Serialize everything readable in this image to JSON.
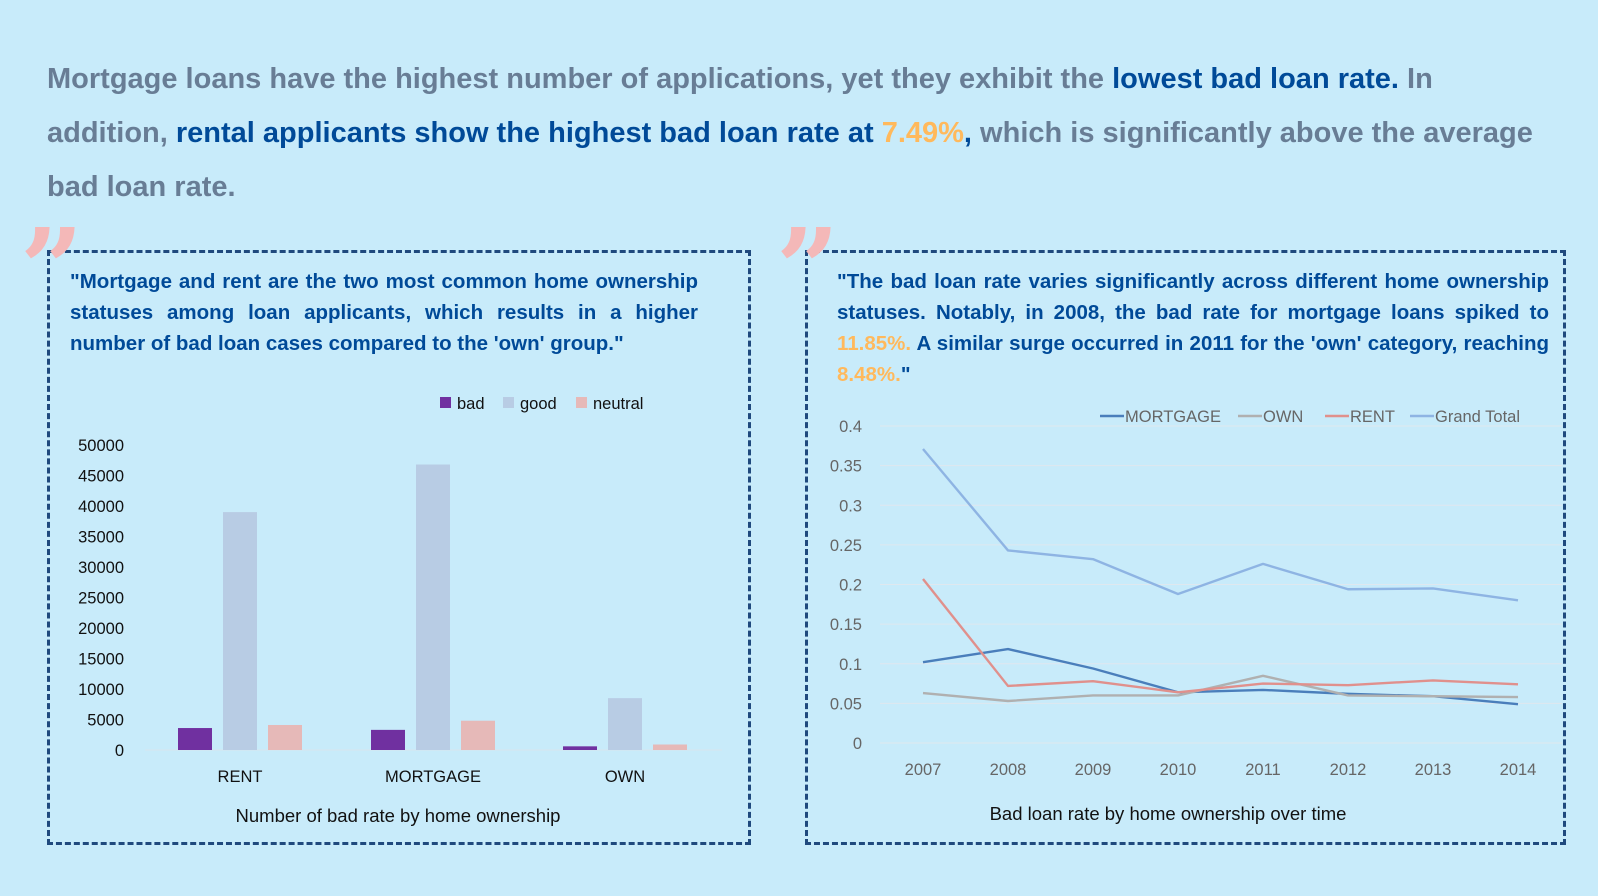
{
  "headline": {
    "p1": "Mortgage loans have the highest number of applications, yet they exhibit the ",
    "p2": "lowest bad loan rate.",
    "p3": " In addition, ",
    "p4": "rental applicants show the highest bad loan rate at ",
    "p5": "7.49%",
    "p6": ",",
    "p7": " which is significantly above the average bad loan rate."
  },
  "left_panel": {
    "quote_icon": "quote-mark-icon",
    "text": "\"Mortgage and rent are the two most common home ownership statuses among loan applicants, which results in a higher number of bad loan cases compared to the 'own' group.\""
  },
  "right_panel": {
    "quote_icon": "quote-mark-icon",
    "t1": "\"The bad loan rate varies significantly across different home ownership statuses. Notably, in 2008, the bad rate for mortgage loans spiked to ",
    "t2": "11.85%.",
    "t3": " A similar surge occurred in 2011 for the 'own' category, reaching ",
    "t4": "8.48%.",
    "t5": "\""
  },
  "colors": {
    "background": "#c8ebfa",
    "accent_blue": "#004a98",
    "highlight_orange": "#ffb95c",
    "muted_text": "#687d95",
    "border": "#1f497d"
  },
  "chart_data": [
    {
      "type": "bar",
      "title": "Number of bad rate by home ownership",
      "xlabel": "",
      "ylabel": "",
      "categories": [
        "RENT",
        "MORTGAGE",
        "OWN"
      ],
      "series": [
        {
          "name": "bad",
          "color": "#7030a0",
          "values": [
            3600,
            3300,
            600
          ]
        },
        {
          "name": "good",
          "color": "#b8cce4",
          "values": [
            39000,
            46800,
            8500
          ]
        },
        {
          "name": "neutral",
          "color": "#e6b9b8",
          "values": [
            4100,
            4800,
            900
          ]
        }
      ],
      "ylim": [
        0,
        50000
      ],
      "yticks": [
        "0",
        "5000",
        "10000",
        "15000",
        "20000",
        "25000",
        "30000",
        "35000",
        "40000",
        "45000",
        "50000"
      ],
      "legend": "top-right",
      "grid": false
    },
    {
      "type": "line",
      "title": "Bad loan rate by home ownership over time",
      "xlabel": "",
      "ylabel": "",
      "x": [
        "2007",
        "2008",
        "2009",
        "2010",
        "2011",
        "2012",
        "2013",
        "2014"
      ],
      "series": [
        {
          "name": "MORTGAGE",
          "color": "#4a7ebb",
          "values": [
            0.102,
            0.1185,
            0.094,
            0.064,
            0.067,
            0.062,
            0.059,
            0.049
          ]
        },
        {
          "name": "OWN",
          "color": "#b0b0b0",
          "values": [
            0.063,
            0.053,
            0.06,
            0.06,
            0.0848,
            0.06,
            0.059,
            0.058
          ]
        },
        {
          "name": "RENT",
          "color": "#e0908c",
          "values": [
            0.207,
            0.072,
            0.078,
            0.064,
            0.075,
            0.073,
            0.079,
            0.074
          ]
        },
        {
          "name": "Grand Total",
          "color": "#8eb4e3",
          "values": [
            0.371,
            0.243,
            0.232,
            0.188,
            0.226,
            0.194,
            0.195,
            0.18
          ]
        }
      ],
      "ylim": [
        0,
        0.4
      ],
      "yticks": [
        "0",
        "0.05",
        "0.1",
        "0.15",
        "0.2",
        "0.25",
        "0.3",
        "0.35",
        "0.4"
      ],
      "legend": "top-right",
      "grid": true
    }
  ]
}
